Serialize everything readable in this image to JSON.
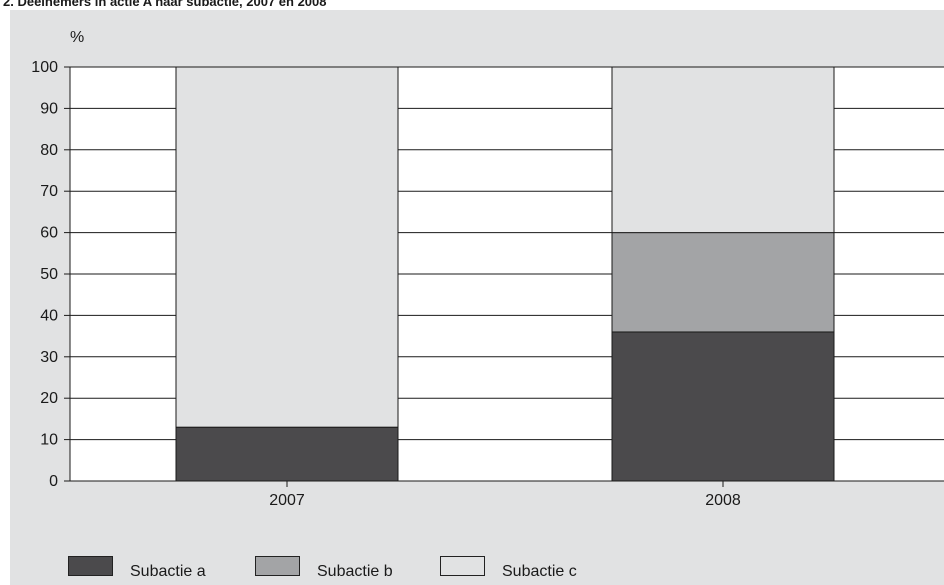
{
  "title": "2. Deelnemers in actie A naar subactie, 2007 en 2008",
  "chart_data": {
    "type": "bar",
    "stacked": true,
    "categories": [
      "2007",
      "2008"
    ],
    "series": [
      {
        "name": "Subactie a",
        "values": [
          13,
          36
        ],
        "color": "#4b4a4c"
      },
      {
        "name": "Subactie b",
        "values": [
          0,
          24
        ],
        "color": "#a3a4a6"
      },
      {
        "name": "Subactie c",
        "values": [
          87,
          40
        ],
        "color": "#e1e2e3"
      }
    ],
    "ylabel": "%",
    "ylim": [
      0,
      100
    ],
    "yticks": [
      "0",
      "10",
      "20",
      "30",
      "40",
      "50",
      "60",
      "70",
      "80",
      "90",
      "100"
    ],
    "grid": true,
    "legend_position": "bottom"
  }
}
